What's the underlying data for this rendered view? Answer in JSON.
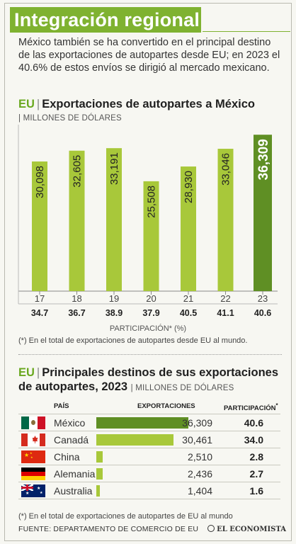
{
  "title": "Integración regional",
  "intro": "México también se ha convertido en el principal destino de las exportaciones de autopartes desde EU; en 2023 el 40.6% de estos envíos se dirigió al mercado mexicano.",
  "colors": {
    "accent": "#7fb230",
    "bar_light": "#a8c83a",
    "bar_dark": "#5f8f24"
  },
  "section1": {
    "prefix": "EU",
    "title": "Exportaciones de autopartes a México",
    "unit": "MILLONES DE DÓLARES"
  },
  "chart_data": [
    {
      "type": "bar",
      "title": "Exportaciones de autopartes a México",
      "ylabel": "MILLONES DE DÓLARES",
      "categories": [
        "17",
        "18",
        "19",
        "20",
        "21",
        "22",
        "23"
      ],
      "values": [
        30098,
        32605,
        33191,
        25508,
        28930,
        33046,
        36309
      ],
      "value_labels": [
        "30,098",
        "32,605",
        "33,191",
        "25,508",
        "28,930",
        "33,046",
        "36,309"
      ],
      "ylim": [
        0,
        37000
      ],
      "highlight_index": 6,
      "participation": {
        "label": "PARTICIPACIÓN* (%)",
        "values": [
          "34.7",
          "36.7",
          "38.9",
          "37.9",
          "40.5",
          "41.1",
          "40.6"
        ]
      }
    },
    {
      "type": "bar",
      "title": "Principales destinos de sus exportaciones de autopartes, 2023",
      "ylabel": "MILLONES DE DÓLARES",
      "categories": [
        "México",
        "Canadá",
        "China",
        "Alemania",
        "Australia"
      ],
      "values": [
        36309,
        30461,
        2510,
        2436,
        1404
      ],
      "value_labels": [
        "36,309",
        "30,461",
        "2,510",
        "2,436",
        "1,404"
      ],
      "participation": [
        "40.6",
        "34.0",
        "2.8",
        "2.7",
        "1.6"
      ]
    }
  ],
  "note1": "(*) En el total de exportaciones de autopartes desde EU al mundo.",
  "section2": {
    "prefix": "EU",
    "title_line1": "Principales destinos de sus exportaciones",
    "title_line2": "de autopartes, 2023",
    "unit": "MILLONES DE DÓLARES",
    "col_country": "PAÍS",
    "col_exports": "EXPORTACIONES",
    "col_participation": "PARTICIPACIÓN",
    "col_participation_mark": "*"
  },
  "flags": [
    "mexico-flag-icon",
    "canada-flag-icon",
    "china-flag-icon",
    "germany-flag-icon",
    "australia-flag-icon"
  ],
  "note2": "(*) En el total de exportaciones de autopartes de EU al mundo",
  "source": "FUENTE: DEPARTAMENTO DE COMERCIO DE EU",
  "logo": "EL ECONOMISTA"
}
